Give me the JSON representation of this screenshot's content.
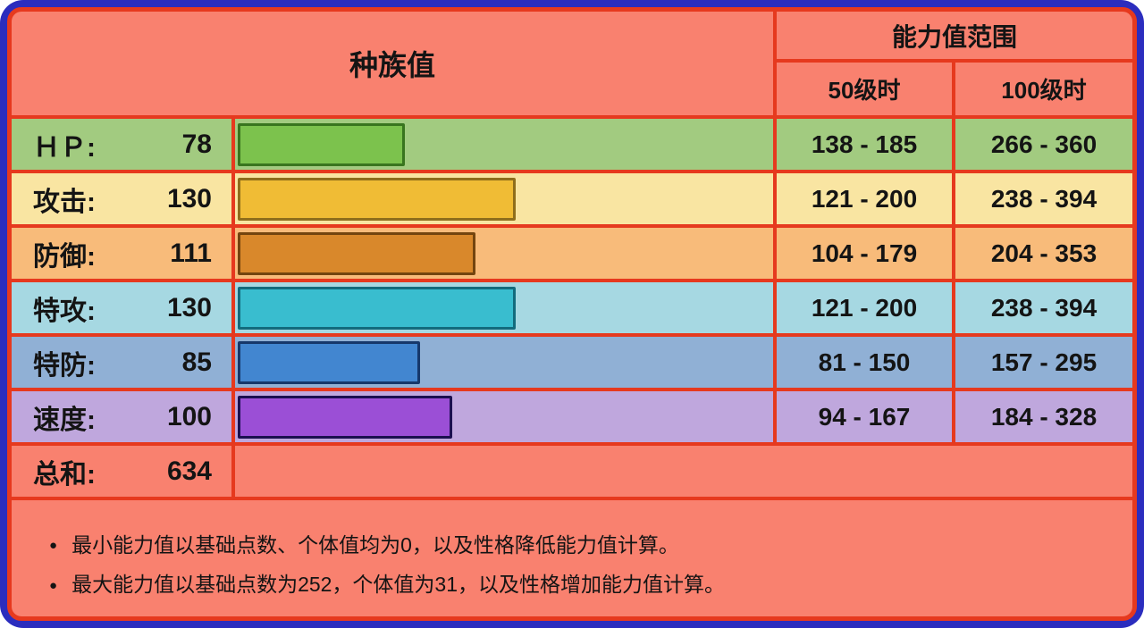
{
  "colors": {
    "frame_blue": "#2b2dbe",
    "grid_red": "#e6391e",
    "salmon_background": "#f9816f",
    "text": "#141414"
  },
  "header": {
    "left_title": "种族值",
    "right_title": "能力值范围",
    "col_level50": "50级时",
    "col_level100": "100级时"
  },
  "table": {
    "bar_max": 250,
    "rows": [
      {
        "label": "ＨＰ:",
        "value": 78,
        "range_50": "138 - 185",
        "range_100": "266 - 360",
        "row_color": "#a2cb80",
        "bar_color": "#7cc24d",
        "bar_border": "#39751f"
      },
      {
        "label": "攻击:",
        "value": 130,
        "range_50": "121 - 200",
        "range_100": "238 - 394",
        "row_color": "#f9e5a2",
        "bar_color": "#f0bc35",
        "bar_border": "#8f6e1c"
      },
      {
        "label": "防御:",
        "value": 111,
        "range_50": "104 - 179",
        "range_100": "204 - 353",
        "row_color": "#f8bb7a",
        "bar_color": "#d9882b",
        "bar_border": "#74450f"
      },
      {
        "label": "特攻:",
        "value": 130,
        "range_50": "121 - 200",
        "range_100": "238 - 394",
        "row_color": "#a6d8e2",
        "bar_color": "#39bdcf",
        "bar_border": "#136b7d"
      },
      {
        "label": "特防:",
        "value": 85,
        "range_50": "81 - 150",
        "range_100": "157 - 295",
        "row_color": "#90b0d5",
        "bar_color": "#4286d0",
        "bar_border": "#16386b"
      },
      {
        "label": "速度:",
        "value": 100,
        "range_50": "94 - 167",
        "range_100": "184 - 328",
        "row_color": "#bfa7dd",
        "bar_color": "#9b4fd6",
        "bar_border": "#1b1050"
      }
    ],
    "total": {
      "label": "总和:",
      "value": 634
    }
  },
  "notes": [
    {
      "bullet": "●",
      "text": "最小能力值以基础点数、个体值均为0，以及性格降低能力值计算。"
    },
    {
      "bullet": "●",
      "text": "最大能力值以基础点数为252，个体值为31，以及性格增加能力值计算。"
    }
  ],
  "chart_data": {
    "type": "bar",
    "title": "种族值",
    "categories": [
      "ＨＰ",
      "攻击",
      "防御",
      "特攻",
      "特防",
      "速度"
    ],
    "values": [
      78,
      130,
      111,
      130,
      85,
      100
    ],
    "total": 634,
    "xlim": [
      0,
      250
    ],
    "orientation": "horizontal",
    "bar_colors": [
      "#7cc24d",
      "#f0bc35",
      "#d9882b",
      "#39bdcf",
      "#4286d0",
      "#9b4fd6"
    ],
    "series": [
      {
        "name": "50级时最小",
        "values": [
          138,
          121,
          104,
          121,
          81,
          94
        ]
      },
      {
        "name": "50级时最大",
        "values": [
          185,
          200,
          179,
          200,
          150,
          167
        ]
      },
      {
        "name": "100级时最小",
        "values": [
          266,
          238,
          204,
          238,
          157,
          184
        ]
      },
      {
        "name": "100级时最大",
        "values": [
          360,
          394,
          353,
          394,
          295,
          328
        ]
      }
    ],
    "legend_position": "none",
    "grid": false
  }
}
